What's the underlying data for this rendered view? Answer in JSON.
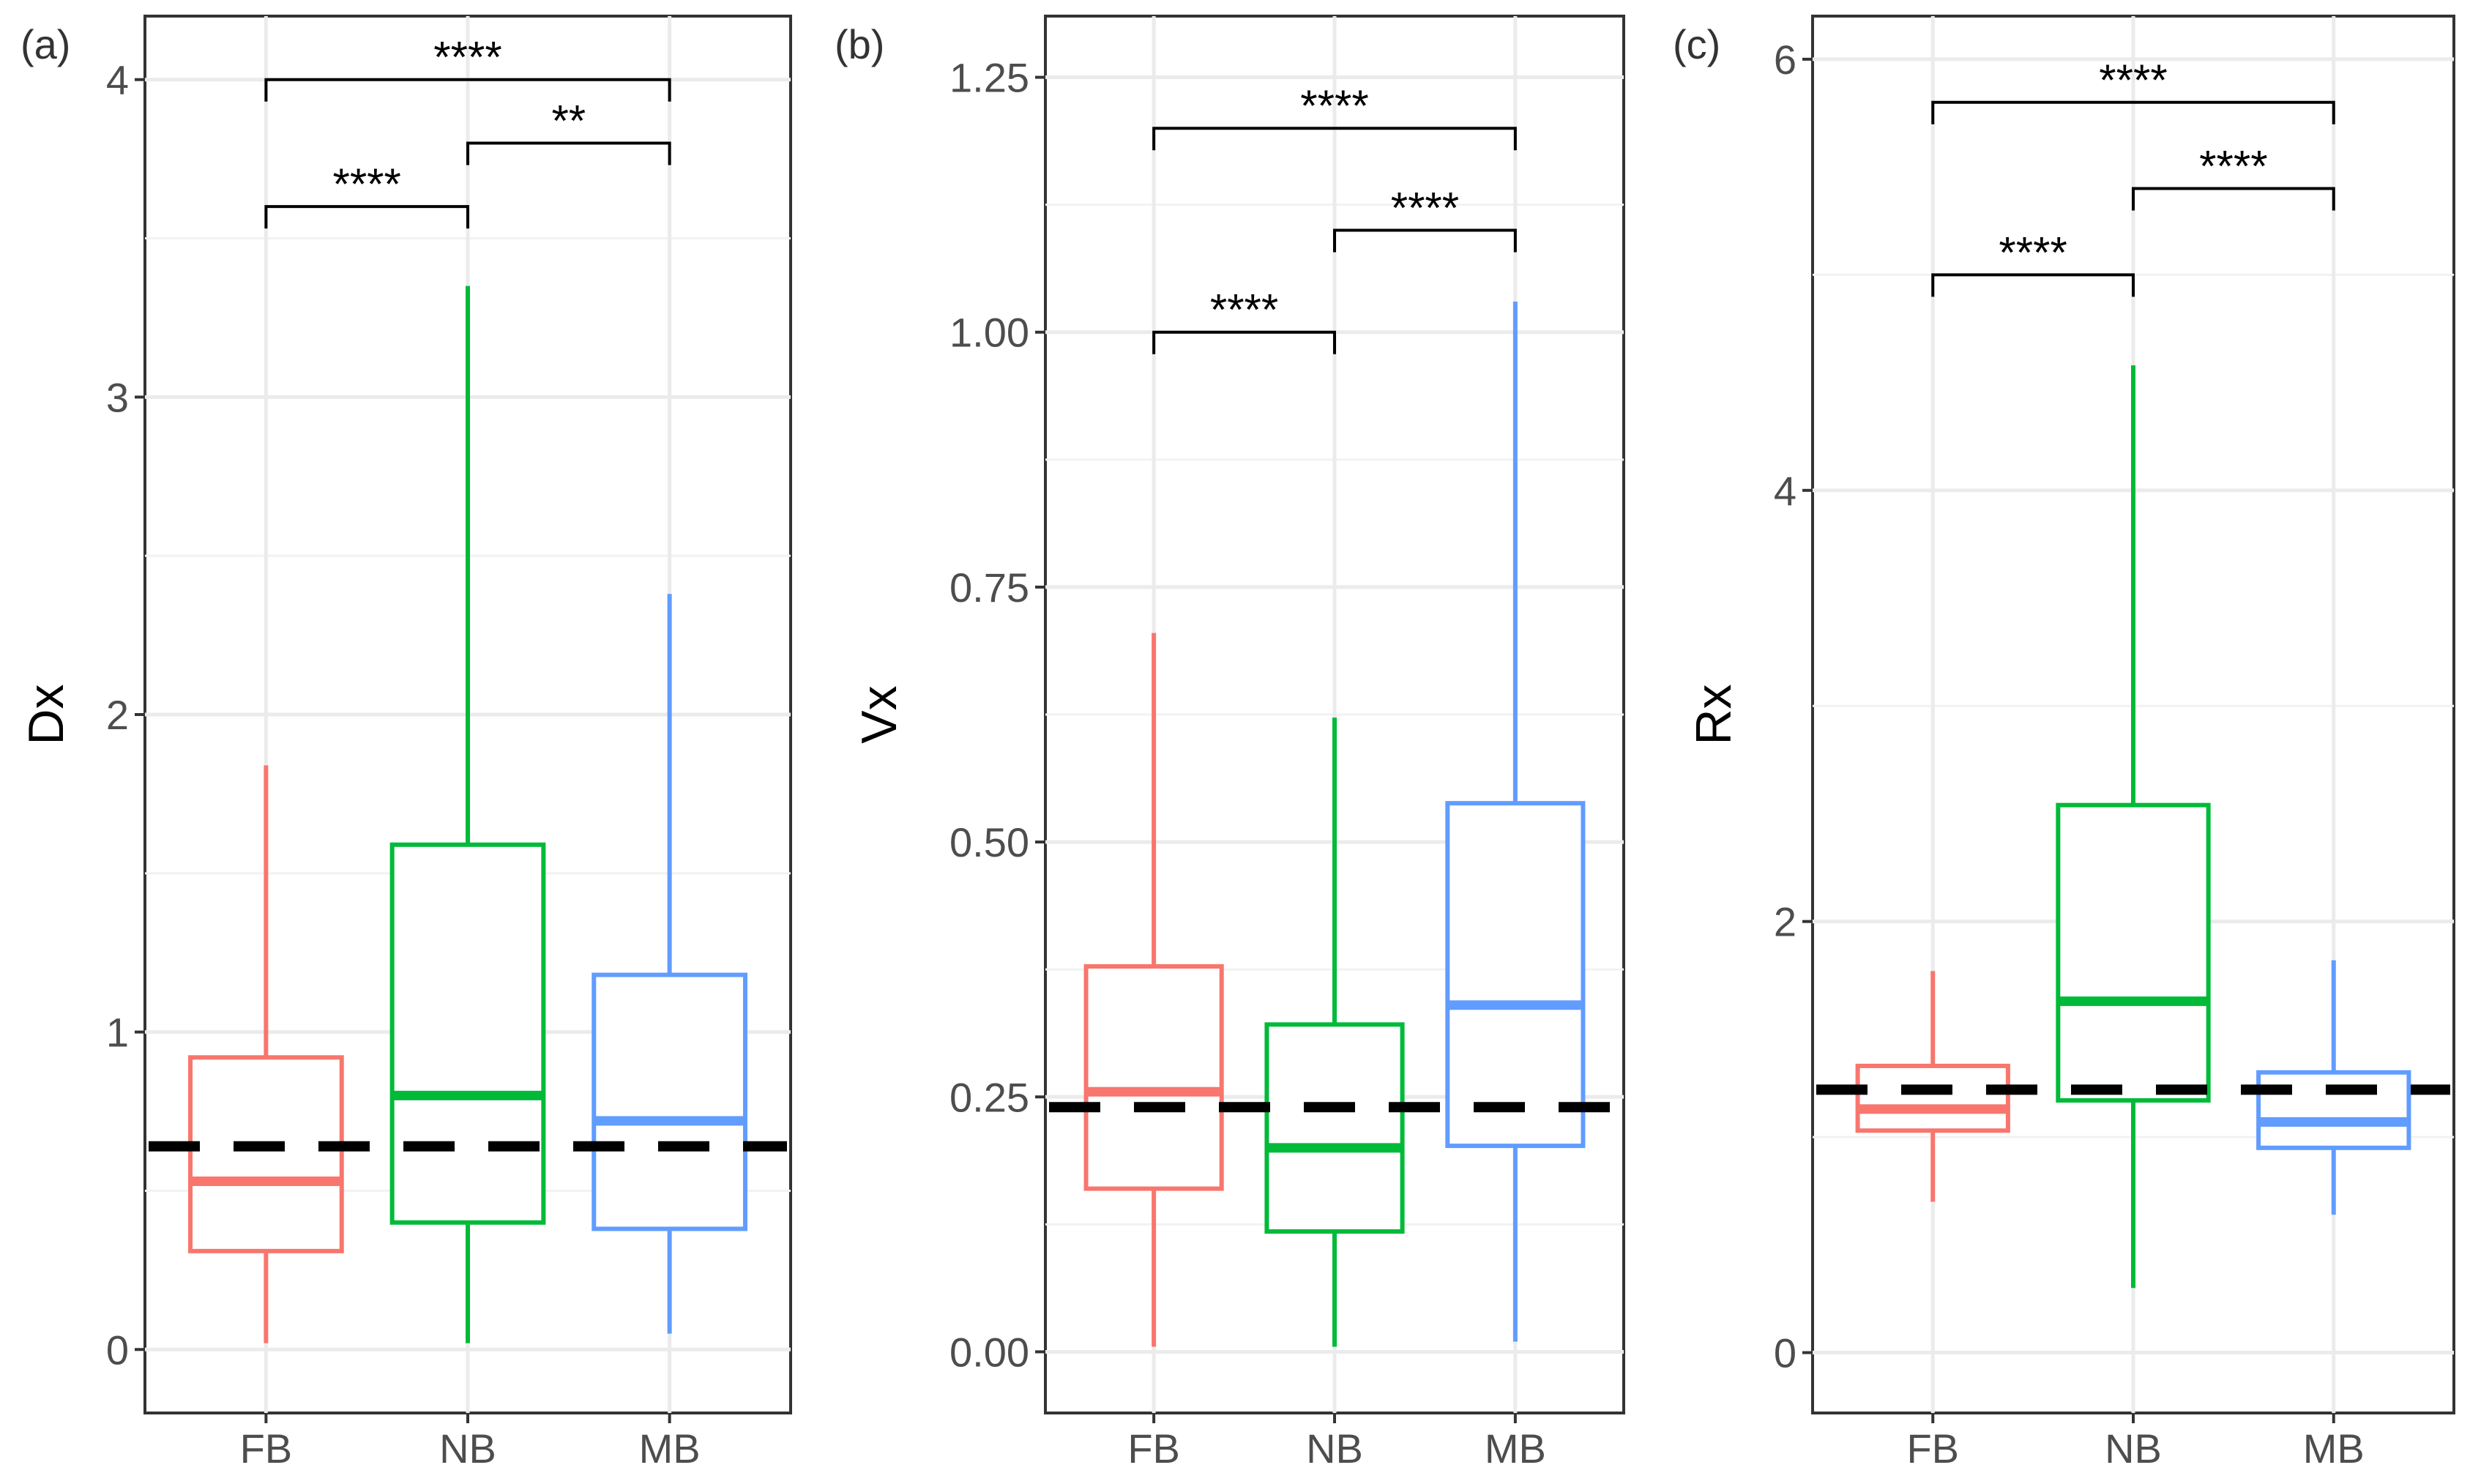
{
  "chart_data": [
    {
      "type": "box",
      "panel_label": "(a)",
      "ylabel": "Dx",
      "xlabel": "",
      "ylim": [
        -0.2,
        4.2
      ],
      "yticks": [
        0,
        1,
        2,
        3,
        4
      ],
      "ytick_labels": [
        "0",
        "1",
        "2",
        "3",
        "4"
      ],
      "categories": [
        "FB",
        "NB",
        "MB"
      ],
      "colors": [
        "#F8766D",
        "#00BA38",
        "#619CFF"
      ],
      "boxes": [
        {
          "min": 0.02,
          "q1": 0.31,
          "median": 0.53,
          "q3": 0.92,
          "max": 1.84
        },
        {
          "min": 0.02,
          "q1": 0.4,
          "median": 0.8,
          "q3": 1.59,
          "max": 3.35
        },
        {
          "min": 0.05,
          "q1": 0.38,
          "median": 0.72,
          "q3": 1.18,
          "max": 2.38
        }
      ],
      "reference_line": 0.64,
      "comparisons": [
        {
          "from": "FB",
          "to": "NB",
          "y": 3.6,
          "label": "****"
        },
        {
          "from": "NB",
          "to": "MB",
          "y": 3.8,
          "label": "**"
        },
        {
          "from": "FB",
          "to": "MB",
          "y": 4.0,
          "label": "****"
        }
      ],
      "grid": true
    },
    {
      "type": "box",
      "panel_label": "(b)",
      "ylabel": "Vx",
      "xlabel": "",
      "ylim": [
        -0.06,
        1.31
      ],
      "yticks": [
        0,
        0.25,
        0.5,
        0.75,
        1.0,
        1.25
      ],
      "ytick_labels": [
        "0.00",
        "0.25",
        "0.50",
        "0.75",
        "1.00",
        "1.25"
      ],
      "categories": [
        "FB",
        "NB",
        "MB"
      ],
      "colors": [
        "#F8766D",
        "#00BA38",
        "#619CFF"
      ],
      "boxes": [
        {
          "min": 0.005,
          "q1": 0.16,
          "median": 0.255,
          "q3": 0.378,
          "max": 0.705
        },
        {
          "min": 0.005,
          "q1": 0.118,
          "median": 0.2,
          "q3": 0.321,
          "max": 0.622
        },
        {
          "min": 0.01,
          "q1": 0.202,
          "median": 0.34,
          "q3": 0.538,
          "max": 1.03
        }
      ],
      "reference_line": 0.24,
      "comparisons": [
        {
          "from": "FB",
          "to": "NB",
          "y": 1.0,
          "label": "****"
        },
        {
          "from": "NB",
          "to": "MB",
          "y": 1.1,
          "label": "****"
        },
        {
          "from": "FB",
          "to": "MB",
          "y": 1.2,
          "label": "****"
        }
      ],
      "grid": true
    },
    {
      "type": "box",
      "panel_label": "(c)",
      "ylabel": "Rx",
      "xlabel": "",
      "ylim": [
        -0.28,
        6.2
      ],
      "yticks": [
        0,
        2,
        4,
        6
      ],
      "ytick_labels": [
        "0",
        "2",
        "4",
        "6"
      ],
      "categories": [
        "FB",
        "NB",
        "MB"
      ],
      "colors": [
        "#F8766D",
        "#00BA38",
        "#619CFF"
      ],
      "boxes": [
        {
          "min": 0.7,
          "q1": 1.03,
          "median": 1.13,
          "q3": 1.33,
          "max": 1.77
        },
        {
          "min": 0.3,
          "q1": 1.17,
          "median": 1.63,
          "q3": 2.54,
          "max": 4.58
        },
        {
          "min": 0.64,
          "q1": 0.95,
          "median": 1.07,
          "q3": 1.3,
          "max": 1.82
        }
      ],
      "reference_line": 1.22,
      "comparisons": [
        {
          "from": "FB",
          "to": "NB",
          "y": 5.0,
          "label": "****"
        },
        {
          "from": "NB",
          "to": "MB",
          "y": 5.4,
          "label": "****"
        },
        {
          "from": "FB",
          "to": "MB",
          "y": 5.8,
          "label": "****"
        }
      ],
      "grid": true
    }
  ]
}
